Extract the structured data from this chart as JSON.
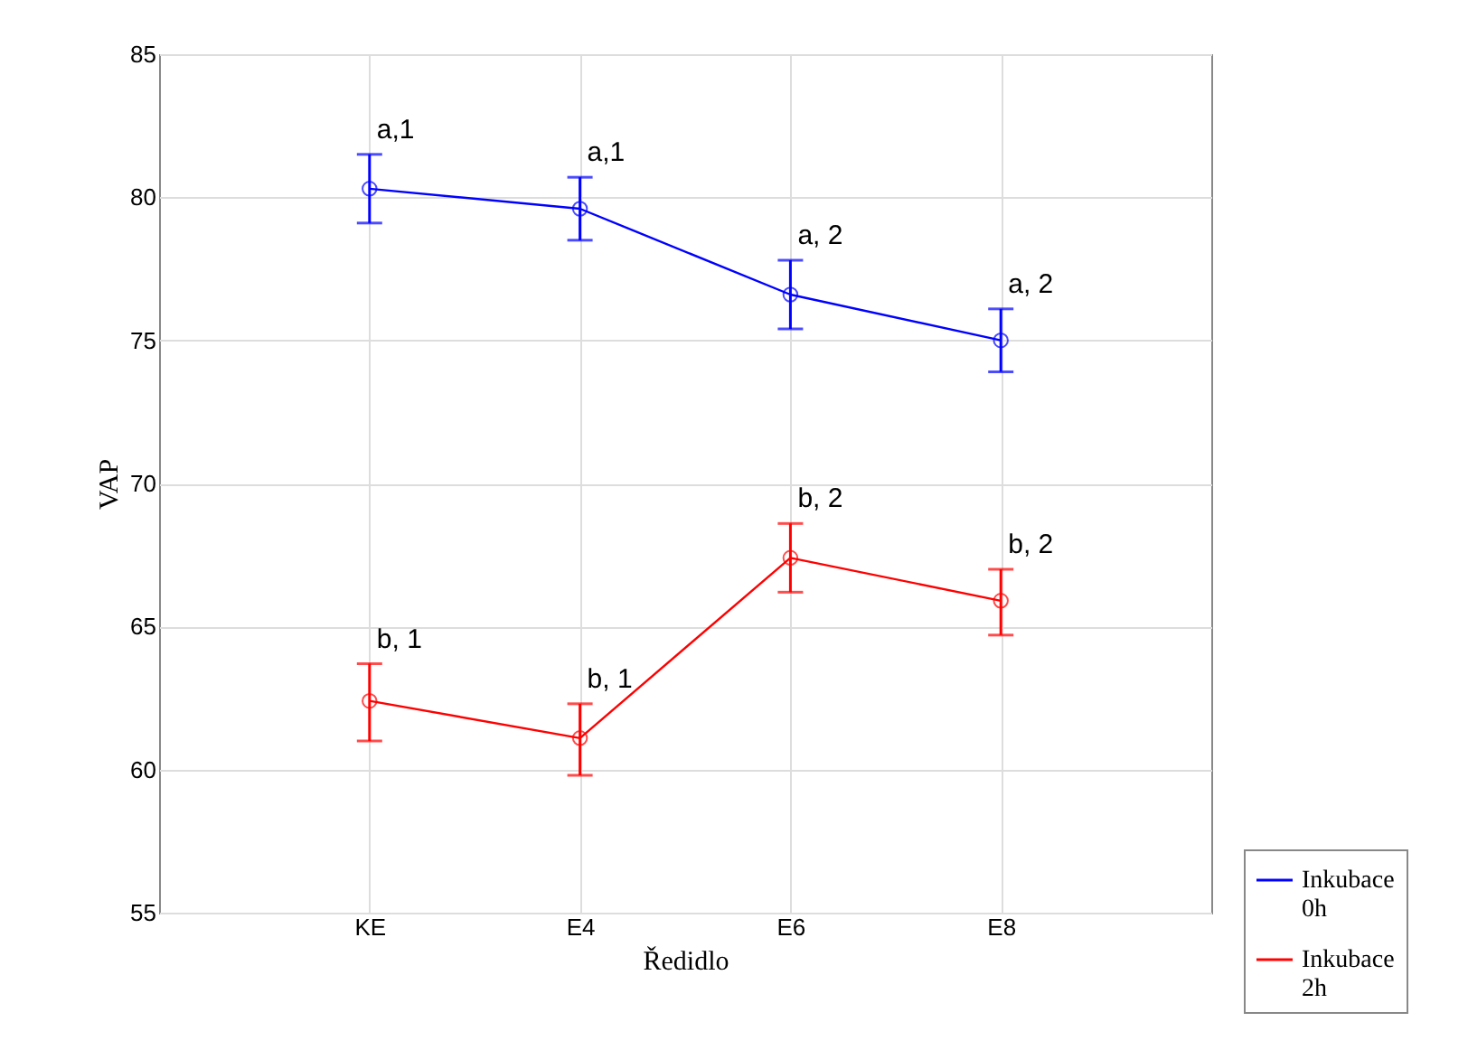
{
  "chart_data": {
    "type": "line",
    "xlabel": "Ředidlo",
    "ylabel": "VAP",
    "categories": [
      "KE",
      "E4",
      "E6",
      "E8"
    ],
    "series": [
      {
        "name": "Inkubace 0h",
        "color": "#0000ff",
        "values": [
          80.3,
          79.6,
          76.6,
          75.0
        ],
        "errors": [
          [
            79.1,
            81.5
          ],
          [
            78.5,
            80.7
          ],
          [
            75.4,
            77.8
          ],
          [
            73.9,
            76.1
          ]
        ]
      },
      {
        "name": "Inkubace 2h",
        "color": "#ff0000",
        "values": [
          62.4,
          61.1,
          67.4,
          65.9
        ],
        "errors": [
          [
            61.0,
            63.7
          ],
          [
            59.8,
            62.3
          ],
          [
            66.2,
            68.6
          ],
          [
            64.7,
            67.0
          ]
        ]
      }
    ],
    "ylim": [
      55,
      85
    ],
    "yticks": [
      55,
      60,
      65,
      70,
      75,
      80,
      85
    ],
    "grid": true,
    "legend": "bottom right",
    "marker": "circle",
    "line_style": "solid",
    "annotations": [
      {
        "text": "a,1",
        "x": "KE",
        "y": 81.5
      },
      {
        "text": "a,1",
        "x": "E4",
        "y": 80.7
      },
      {
        "text": "a, 2",
        "x": "E6",
        "y": 77.8
      },
      {
        "text": "a, 2",
        "x": "E8",
        "y": 76.1
      },
      {
        "text": "b, 1",
        "x": "KE",
        "y": 63.7
      },
      {
        "text": "b, 1",
        "x": "E4",
        "y": 62.3
      },
      {
        "text": "b, 2",
        "x": "E6",
        "y": 68.6
      },
      {
        "text": "b, 2",
        "x": "E8",
        "y": 67.0
      }
    ]
  }
}
